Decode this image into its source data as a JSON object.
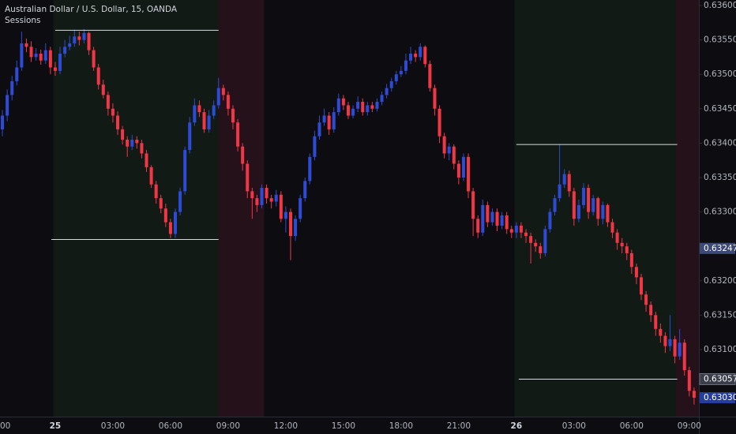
{
  "chart_data": {
    "type": "candlestick",
    "title": "Australian Dollar / U.S. Dollar, 15, OANDA",
    "subtitle": "Sessions",
    "up_color": "#2e4bd6",
    "down_color": "#f23645",
    "open": [
      0.6342,
      0.6344,
      0.6347,
      0.6349,
      0.6351,
      0.63545,
      0.6354,
      0.63525,
      0.6353,
      0.6352,
      0.63535,
      0.6351,
      0.63505,
      0.6353,
      0.6354,
      0.63545,
      0.63555,
      0.6355,
      0.6356,
      0.63535,
      0.6351,
      0.63485,
      0.6347,
      0.6345,
      0.6344,
      0.6342,
      0.63405,
      0.63395,
      0.63405,
      0.634,
      0.63385,
      0.63365,
      0.6334,
      0.6332,
      0.63305,
      0.63285,
      0.63268,
      0.633,
      0.6333,
      0.6339,
      0.6343,
      0.63455,
      0.63445,
      0.6342,
      0.6344,
      0.63455,
      0.6348,
      0.6347,
      0.6345,
      0.6343,
      0.63395,
      0.6337,
      0.6333,
      0.6332,
      0.6331,
      0.63335,
      0.6332,
      0.63315,
      0.63325,
      0.6329,
      0.633,
      0.63265,
      0.6329,
      0.6332,
      0.63345,
      0.6338,
      0.6341,
      0.6343,
      0.6344,
      0.6342,
      0.63445,
      0.63465,
      0.63455,
      0.6344,
      0.6345,
      0.6346,
      0.63445,
      0.63455,
      0.6345,
      0.6346,
      0.6347,
      0.6348,
      0.6349,
      0.635,
      0.63505,
      0.6352,
      0.6353,
      0.63525,
      0.6354,
      0.63515,
      0.6348,
      0.6345,
      0.6341,
      0.63385,
      0.63395,
      0.6337,
      0.6335,
      0.6338,
      0.6333,
      0.6329,
      0.6327,
      0.6331,
      0.63285,
      0.633,
      0.6328,
      0.63295,
      0.63275,
      0.6327,
      0.6328,
      0.6327,
      0.63265,
      0.63255,
      0.6325,
      0.6324,
      0.63275,
      0.633,
      0.6332,
      0.6334,
      0.63355,
      0.6333,
      0.6329,
      0.6331,
      0.63335,
      0.633,
      0.6332,
      0.6329,
      0.6331,
      0.63285,
      0.6327,
      0.63255,
      0.6325,
      0.6324,
      0.6322,
      0.63205,
      0.6318,
      0.63165,
      0.6315,
      0.6313,
      0.6312,
      0.63105,
      0.63115,
      0.6309,
      0.6311,
      0.6307,
      0.6304
    ],
    "high": [
      0.63448,
      0.63478,
      0.63498,
      0.6352,
      0.63562,
      0.63552,
      0.63548,
      0.63538,
      0.63536,
      0.63545,
      0.6354,
      0.63518,
      0.6354,
      0.6355,
      0.63556,
      0.63565,
      0.63562,
      0.63566,
      0.63562,
      0.6354,
      0.63515,
      0.63492,
      0.63475,
      0.63458,
      0.63446,
      0.63425,
      0.6341,
      0.63412,
      0.6341,
      0.63405,
      0.6339,
      0.63368,
      0.63345,
      0.63325,
      0.63312,
      0.6329,
      0.63305,
      0.63335,
      0.63395,
      0.63438,
      0.63465,
      0.63462,
      0.6345,
      0.63448,
      0.63462,
      0.63495,
      0.63485,
      0.63475,
      0.63455,
      0.63435,
      0.634,
      0.63375,
      0.63335,
      0.63325,
      0.6334,
      0.6334,
      0.63325,
      0.63332,
      0.6333,
      0.63308,
      0.63305,
      0.63295,
      0.63325,
      0.6335,
      0.63385,
      0.63418,
      0.6344,
      0.6345,
      0.63445,
      0.63452,
      0.63472,
      0.6347,
      0.6346,
      0.63455,
      0.63468,
      0.63465,
      0.6346,
      0.6346,
      0.63465,
      0.63475,
      0.63486,
      0.63495,
      0.63505,
      0.63512,
      0.6353,
      0.6354,
      0.63535,
      0.63545,
      0.63542,
      0.6352,
      0.63485,
      0.63455,
      0.63415,
      0.634,
      0.63398,
      0.63375,
      0.63385,
      0.63385,
      0.63335,
      0.63295,
      0.63318,
      0.63315,
      0.63305,
      0.63305,
      0.633,
      0.633,
      0.6328,
      0.63285,
      0.63285,
      0.63275,
      0.6327,
      0.6326,
      0.63255,
      0.6328,
      0.63305,
      0.63325,
      0.63398,
      0.63362,
      0.6336,
      0.63335,
      0.63318,
      0.63342,
      0.6334,
      0.63325,
      0.63322,
      0.63315,
      0.63312,
      0.6329,
      0.63275,
      0.63262,
      0.63255,
      0.63245,
      0.63225,
      0.6321,
      0.63185,
      0.6317,
      0.63155,
      0.63138,
      0.63125,
      0.6315,
      0.6312,
      0.6313,
      0.63115,
      0.63075,
      0.63045
    ],
    "low": [
      0.6341,
      0.63432,
      0.63462,
      0.63484,
      0.63505,
      0.63532,
      0.63518,
      0.6352,
      0.63514,
      0.63515,
      0.635,
      0.63498,
      0.635,
      0.63525,
      0.63535,
      0.6354,
      0.63542,
      0.63545,
      0.63528,
      0.63505,
      0.63478,
      0.63465,
      0.6344,
      0.6343,
      0.63412,
      0.63398,
      0.6338,
      0.6339,
      0.63392,
      0.63378,
      0.63358,
      0.63335,
      0.63312,
      0.63298,
      0.63278,
      0.63262,
      0.63262,
      0.63295,
      0.63325,
      0.63385,
      0.63425,
      0.63438,
      0.63415,
      0.63415,
      0.63435,
      0.6345,
      0.63462,
      0.6344,
      0.6342,
      0.63388,
      0.6336,
      0.6332,
      0.6329,
      0.633,
      0.63305,
      0.63312,
      0.63305,
      0.63308,
      0.63285,
      0.6327,
      0.6323,
      0.63258,
      0.63285,
      0.63315,
      0.6334,
      0.63375,
      0.63405,
      0.63425,
      0.63412,
      0.63415,
      0.6344,
      0.63448,
      0.63435,
      0.63436,
      0.63445,
      0.6344,
      0.6344,
      0.63445,
      0.63446,
      0.63455,
      0.63465,
      0.63475,
      0.63485,
      0.63496,
      0.635,
      0.63515,
      0.63518,
      0.6352,
      0.6351,
      0.63475,
      0.6344,
      0.634,
      0.63378,
      0.63375,
      0.63362,
      0.6334,
      0.63345,
      0.6332,
      0.63265,
      0.63262,
      0.63265,
      0.63278,
      0.6328,
      0.63272,
      0.63275,
      0.63268,
      0.63262,
      0.63262,
      0.63262,
      0.63255,
      0.63225,
      0.63242,
      0.63232,
      0.63235,
      0.6327,
      0.63295,
      0.63315,
      0.63335,
      0.63322,
      0.6328,
      0.63285,
      0.63305,
      0.6329,
      0.63295,
      0.6328,
      0.63282,
      0.63278,
      0.63262,
      0.63245,
      0.6324,
      0.6323,
      0.6321,
      0.63195,
      0.63172,
      0.63155,
      0.6314,
      0.6312,
      0.6311,
      0.63095,
      0.63098,
      0.6308,
      0.63085,
      0.63062,
      0.63032,
      0.6302
    ],
    "close": [
      0.6344,
      0.6347,
      0.6349,
      0.6351,
      0.63545,
      0.6354,
      0.63525,
      0.6353,
      0.6352,
      0.63535,
      0.6351,
      0.63505,
      0.6353,
      0.6354,
      0.63545,
      0.63555,
      0.6355,
      0.6356,
      0.63535,
      0.6351,
      0.63485,
      0.6347,
      0.6345,
      0.6344,
      0.6342,
      0.63405,
      0.63395,
      0.63405,
      0.634,
      0.63385,
      0.63365,
      0.6334,
      0.6332,
      0.63305,
      0.63285,
      0.63268,
      0.633,
      0.6333,
      0.6339,
      0.6343,
      0.63455,
      0.63445,
      0.6342,
      0.6344,
      0.63455,
      0.6348,
      0.6347,
      0.6345,
      0.6343,
      0.63395,
      0.6337,
      0.6333,
      0.6332,
      0.6331,
      0.63335,
      0.6332,
      0.63315,
      0.63325,
      0.6329,
      0.633,
      0.63265,
      0.6329,
      0.6332,
      0.63345,
      0.6338,
      0.6341,
      0.6343,
      0.6344,
      0.6342,
      0.63445,
      0.63465,
      0.63455,
      0.6344,
      0.6345,
      0.6346,
      0.63445,
      0.63455,
      0.6345,
      0.6346,
      0.6347,
      0.6348,
      0.6349,
      0.635,
      0.63505,
      0.6352,
      0.6353,
      0.63525,
      0.6354,
      0.63515,
      0.6348,
      0.6345,
      0.6341,
      0.63385,
      0.63395,
      0.6337,
      0.6335,
      0.6338,
      0.6333,
      0.6329,
      0.6327,
      0.6331,
      0.63285,
      0.633,
      0.6328,
      0.63295,
      0.63275,
      0.6327,
      0.6328,
      0.6327,
      0.63265,
      0.63255,
      0.6325,
      0.6324,
      0.63275,
      0.633,
      0.6332,
      0.6334,
      0.63355,
      0.6333,
      0.6329,
      0.6331,
      0.63335,
      0.633,
      0.6332,
      0.6329,
      0.6331,
      0.63285,
      0.6327,
      0.63255,
      0.6325,
      0.6324,
      0.6322,
      0.63205,
      0.6318,
      0.63165,
      0.6315,
      0.6313,
      0.6312,
      0.63105,
      0.63115,
      0.6309,
      0.6311,
      0.6307,
      0.6304,
      0.6303
    ],
    "xlim": [
      -0.5,
      145
    ],
    "xticks": [
      {
        "value": -1,
        "label": "00"
      },
      {
        "value": 11,
        "label": "25"
      },
      {
        "value": 23,
        "label": "03:00"
      },
      {
        "value": 35,
        "label": "06:00"
      },
      {
        "value": 47,
        "label": "09:00"
      },
      {
        "value": 59,
        "label": "12:00"
      },
      {
        "value": 71,
        "label": "15:00"
      },
      {
        "value": 83,
        "label": "18:00"
      },
      {
        "value": 95,
        "label": "21:00"
      },
      {
        "value": 107,
        "label": "26"
      },
      {
        "value": 119,
        "label": "03:00"
      },
      {
        "value": 131,
        "label": "06:00"
      },
      {
        "value": 143,
        "label": "09:00"
      }
    ],
    "ylim": [
      0.630025,
      0.63608
    ],
    "yticks": [
      {
        "value": 0.636,
        "label": "0.63600"
      },
      {
        "value": 0.6355,
        "label": "0.63550"
      },
      {
        "value": 0.635,
        "label": "0.63500"
      },
      {
        "value": 0.6345,
        "label": "0.63450"
      },
      {
        "value": 0.634,
        "label": "0.63400"
      },
      {
        "value": 0.6335,
        "label": "0.63350"
      },
      {
        "value": 0.633,
        "label": "0.63300"
      },
      {
        "value": 0.632,
        "label": "0.63200"
      },
      {
        "value": 0.6315,
        "label": "0.63150"
      },
      {
        "value": 0.631,
        "label": "0.63100"
      }
    ],
    "sessions": [
      {
        "from": 10.6,
        "to": 44.9,
        "color": "#111a14"
      },
      {
        "from": 44.9,
        "to": 54.5,
        "color": "#24111a"
      },
      {
        "from": 106.6,
        "to": 140.2,
        "color": "#111a14"
      },
      {
        "from": 140.2,
        "to": 145,
        "color": "#24111a"
      }
    ],
    "levels": [
      {
        "value": 0.63564,
        "from": 11,
        "to": 45
      },
      {
        "value": 0.6326,
        "from": 10.2,
        "to": 45
      },
      {
        "value": 0.63398,
        "from": 107,
        "to": 140.5
      },
      {
        "value": 0.63057,
        "from": 107.5,
        "to": 140.5
      }
    ],
    "price_labels": [
      {
        "value": 0.63247,
        "label": "0.63247",
        "color": "#3d4a78"
      },
      {
        "value": 0.63057,
        "label": "0.63057",
        "color": "#3a3e4a"
      },
      {
        "value": 0.6303,
        "label": "0.63030",
        "color": "#253d9e"
      }
    ]
  }
}
